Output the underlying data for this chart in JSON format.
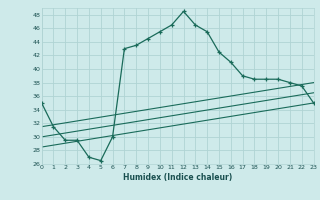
{
  "title": "",
  "xlabel": "Humidex (Indice chaleur)",
  "xlim": [
    0,
    23
  ],
  "ylim": [
    26,
    49
  ],
  "yticks": [
    26,
    28,
    30,
    32,
    34,
    36,
    38,
    40,
    42,
    44,
    46,
    48
  ],
  "xticks": [
    0,
    1,
    2,
    3,
    4,
    5,
    6,
    7,
    8,
    9,
    10,
    11,
    12,
    13,
    14,
    15,
    16,
    17,
    18,
    19,
    20,
    21,
    22,
    23
  ],
  "bg_color": "#ceeaea",
  "grid_color": "#b0d4d4",
  "line_color": "#1a6b5a",
  "main_x": [
    0,
    1,
    2,
    3,
    4,
    5,
    6,
    7,
    8,
    9,
    10,
    11,
    12,
    13,
    14,
    15,
    16,
    17,
    18,
    19,
    20,
    21,
    22,
    23
  ],
  "main_y": [
    35.0,
    31.5,
    29.5,
    29.5,
    27.0,
    26.5,
    30.0,
    43.0,
    43.5,
    44.5,
    45.5,
    46.5,
    48.5,
    46.5,
    45.5,
    42.5,
    41.0,
    39.0,
    38.5,
    38.5,
    38.5,
    38.0,
    37.5,
    35.0
  ],
  "line1_x": [
    0,
    23
  ],
  "line1_y": [
    31.5,
    38.0
  ],
  "line2_x": [
    0,
    23
  ],
  "line2_y": [
    30.0,
    36.5
  ],
  "line3_x": [
    0,
    23
  ],
  "line3_y": [
    28.5,
    35.0
  ]
}
